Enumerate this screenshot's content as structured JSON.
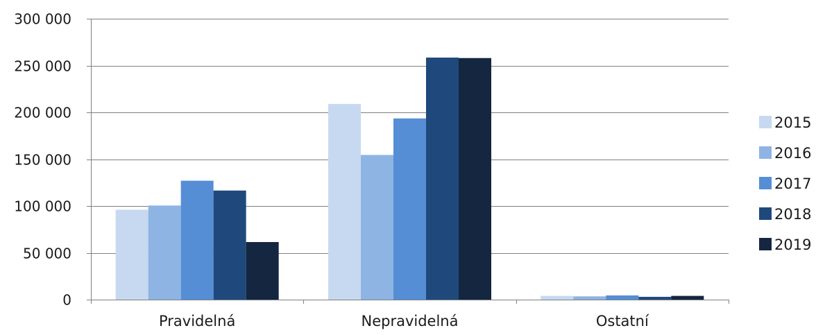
{
  "chart_data": {
    "type": "bar",
    "title": "",
    "xlabel": "",
    "ylabel": "",
    "categories": [
      "Pravidelná",
      "Nepravidelná",
      "Ostatní"
    ],
    "series": [
      {
        "name": "2015",
        "color": "#c6d9f0",
        "values": [
          96000,
          209000,
          4000
        ]
      },
      {
        "name": "2016",
        "color": "#8eb4e3",
        "values": [
          100500,
          154500,
          3500
        ]
      },
      {
        "name": "2017",
        "color": "#558ed5",
        "values": [
          127000,
          193500,
          4500
        ]
      },
      {
        "name": "2018",
        "color": "#1f497d",
        "values": [
          116500,
          258500,
          3000
        ]
      },
      {
        "name": "2019",
        "color": "#142640",
        "values": [
          61500,
          258000,
          4000
        ]
      }
    ],
    "ylim": [
      0,
      300000
    ],
    "yticks": [
      0,
      50000,
      100000,
      150000,
      200000,
      250000,
      300000
    ],
    "ytick_labels": [
      "0",
      "50 000",
      "100 000",
      "150 000",
      "200 000",
      "250 000",
      "300 000"
    ],
    "grid": true,
    "legend_position": "right"
  }
}
